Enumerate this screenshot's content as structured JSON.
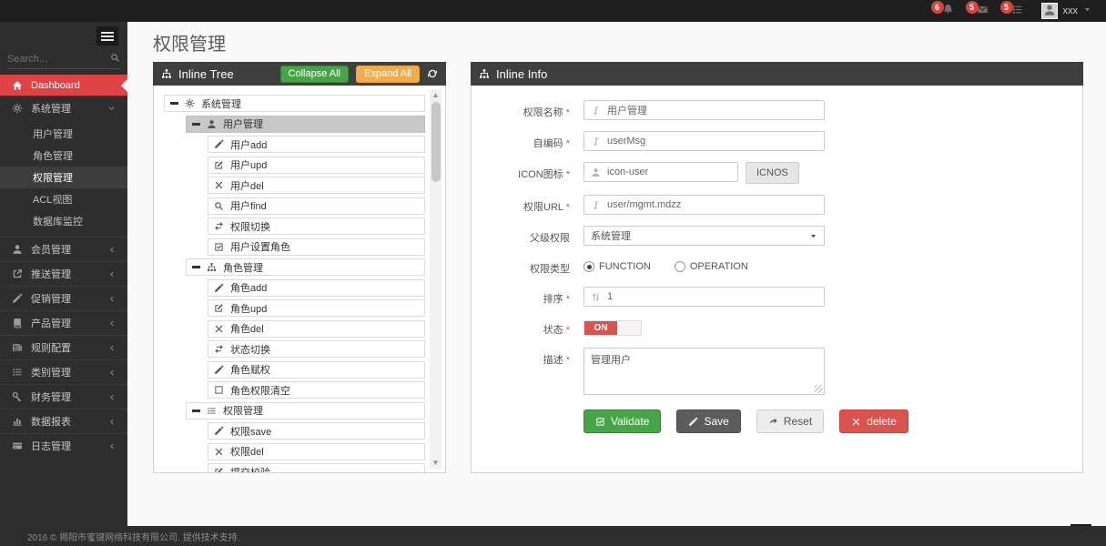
{
  "navbar": {
    "notifications": [
      {
        "icon": "bell-icon",
        "count": "6"
      },
      {
        "icon": "envelope-icon",
        "count": "5"
      },
      {
        "icon": "tasks-icon",
        "count": "5"
      }
    ],
    "user": {
      "name": "xxx",
      "avatar_icon": "user-icon",
      "caret_icon": "caret-down-icon"
    }
  },
  "sidebar": {
    "search_placeholder": "Search...",
    "items": [
      {
        "name": "sidebar-item-dashboard",
        "label": "Dashboard",
        "icon": "home-icon",
        "active": true
      },
      {
        "name": "sidebar-item-system-mgmt",
        "label": "系统管理",
        "icon": "gears-icon",
        "expanded": true,
        "children": [
          {
            "name": "sidebar-subitem-user-mgmt",
            "label": "用户管理"
          },
          {
            "name": "sidebar-subitem-role-mgmt",
            "label": "角色管理"
          },
          {
            "name": "sidebar-subitem-permission-mgmt",
            "label": "权限管理",
            "active": true
          },
          {
            "name": "sidebar-subitem-acl-view",
            "label": "ACL视图"
          },
          {
            "name": "sidebar-subitem-db-monitor",
            "label": "数据库监控"
          }
        ]
      },
      {
        "name": "sidebar-item-member-mgmt",
        "label": "会员管理",
        "icon": "user-icon"
      },
      {
        "name": "sidebar-item-push-mgmt",
        "label": "推送管理",
        "icon": "share-icon"
      },
      {
        "name": "sidebar-item-promo-mgmt",
        "label": "促销管理",
        "icon": "pencil-icon"
      },
      {
        "name": "sidebar-item-product-mgmt",
        "label": "产品管理",
        "icon": "book-icon"
      },
      {
        "name": "sidebar-item-rule-config",
        "label": "规则配置",
        "icon": "newspaper-icon"
      },
      {
        "name": "sidebar-item-category-mgmt",
        "label": "类别管理",
        "icon": "list-icon"
      },
      {
        "name": "sidebar-item-finance-mgmt",
        "label": "财务管理",
        "icon": "key-icon"
      },
      {
        "name": "sidebar-item-data-report",
        "label": "数据报表",
        "icon": "chart-icon"
      },
      {
        "name": "sidebar-item-log-mgmt",
        "label": "日志管理",
        "icon": "card-icon"
      }
    ]
  },
  "page": {
    "title": "权限管理"
  },
  "tree_panel": {
    "title": "Inline Tree",
    "title_icon": "sitemap-icon",
    "collapse_all_label": "Collapse All",
    "expand_all_label": "Expand All",
    "rows": [
      {
        "label": "系统管理",
        "icon": "gears-icon",
        "level": 0,
        "toggle": true
      },
      {
        "label": "用户管理",
        "icon": "user-icon",
        "level": 1,
        "toggle": true,
        "selected": true
      },
      {
        "label": "用户add",
        "icon": "pencil-icon",
        "level": 2
      },
      {
        "label": "用户upd",
        "icon": "edit-icon",
        "level": 2
      },
      {
        "label": "用户del",
        "icon": "x-icon",
        "level": 2
      },
      {
        "label": "用户find",
        "icon": "search-icon",
        "level": 2
      },
      {
        "label": "权限切换",
        "icon": "retweet-icon",
        "level": 2
      },
      {
        "label": "用户设置角色",
        "icon": "check-square-icon",
        "level": 2
      },
      {
        "label": "角色管理",
        "icon": "sitemap-icon",
        "level": 1,
        "toggle": true
      },
      {
        "label": "角色add",
        "icon": "pencil-icon",
        "level": 2
      },
      {
        "label": "角色upd",
        "icon": "edit-icon",
        "level": 2
      },
      {
        "label": "角色del",
        "icon": "x-icon",
        "level": 2
      },
      {
        "label": "状态切换",
        "icon": "retweet-icon",
        "level": 2
      },
      {
        "label": "角色赋权",
        "icon": "pencil-icon",
        "level": 2
      },
      {
        "label": "角色权限清空",
        "icon": "square-icon",
        "level": 2
      },
      {
        "label": "权限管理",
        "icon": "list-icon",
        "level": 1,
        "toggle": true
      },
      {
        "label": "权限save",
        "icon": "pencil-icon",
        "level": 2
      },
      {
        "label": "权限del",
        "icon": "x-icon",
        "level": 2
      },
      {
        "label": "提交校验",
        "icon": "edit-icon",
        "level": 2
      }
    ]
  },
  "info_panel": {
    "title": "Inline Info",
    "title_icon": "sitemap-icon",
    "fields": [
      {
        "name": "permission-name-field",
        "label": "权限名称",
        "required": true,
        "type": "text",
        "icon": "italic-icon",
        "value": "用户管理"
      },
      {
        "name": "self-code-field",
        "label": "自编码",
        "required": true,
        "type": "text",
        "icon": "italic-icon",
        "value": "userMsg"
      },
      {
        "name": "icon-field",
        "label": "ICON图标",
        "required": true,
        "type": "text-button",
        "icon": "user-icon",
        "value": "icon-user",
        "button_label": "ICNOS"
      },
      {
        "name": "permission-url-field",
        "label": "权限URL",
        "required": true,
        "type": "text",
        "icon": "italic-icon",
        "value": "user/mgmt.mdzz"
      },
      {
        "name": "parent-permission-select",
        "label": "父级权限",
        "required": false,
        "type": "select",
        "value": "系统管理"
      },
      {
        "name": "permission-type-radios",
        "label": "权限类型",
        "required": false,
        "type": "radio",
        "options": [
          {
            "label": "FUNCTION",
            "checked": true
          },
          {
            "label": "OPERATION",
            "checked": false
          }
        ]
      },
      {
        "name": "sort-order-field",
        "label": "排序",
        "required": true,
        "type": "text",
        "icon": "sort-icon",
        "value": "1"
      },
      {
        "name": "status-toggle",
        "label": "状态",
        "required": true,
        "type": "toggle",
        "value": "ON"
      },
      {
        "name": "description-textarea",
        "label": "描述",
        "required": true,
        "type": "textarea",
        "value": "管理用户"
      }
    ],
    "buttons": [
      {
        "name": "validate-button",
        "label": "Validate",
        "icon": "check-square-icon",
        "style": "success"
      },
      {
        "name": "save-button",
        "label": "Save",
        "icon": "pencil-icon",
        "style": "dark"
      },
      {
        "name": "reset-button",
        "label": "Reset",
        "icon": "redo-icon",
        "style": "light"
      },
      {
        "name": "delete-button",
        "label": "delete",
        "icon": "x-icon",
        "style": "danger"
      }
    ]
  },
  "footer": {
    "copyright": "2016 © 揭阳市蜜键网络科技有限公司. 提供技术支持."
  },
  "colors": {
    "accent_red": "#e04345",
    "success_green": "#47a447",
    "warning_orange": "#f0ad4e",
    "danger_red": "#d9534f",
    "header_dark": "#3f3f3f",
    "navbar_black": "#1f1f1f",
    "sidebar_dark": "#2e2e2e"
  }
}
